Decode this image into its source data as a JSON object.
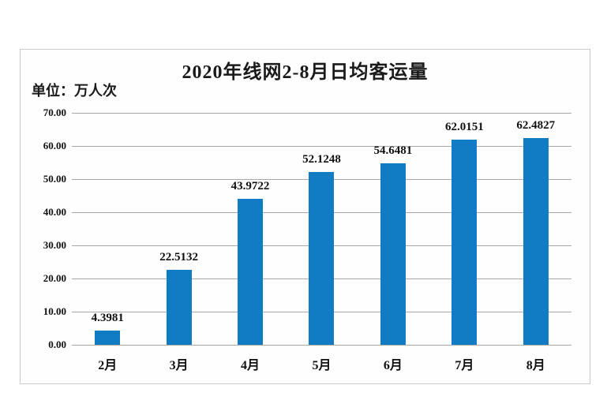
{
  "chart_data": {
    "type": "bar",
    "title": "2020年线网2-8月日均客运量",
    "unit_label": "单位：万人次",
    "categories": [
      "2月",
      "3月",
      "4月",
      "5月",
      "6月",
      "7月",
      "8月"
    ],
    "values": [
      4.3981,
      22.5132,
      43.9722,
      52.1248,
      54.6481,
      62.0151,
      62.4827
    ],
    "value_labels": [
      "4.3981",
      "22.5132",
      "43.9722",
      "52.1248",
      "54.6481",
      "62.0151",
      "62.4827"
    ],
    "xlabel": "",
    "ylabel": "",
    "ylim": [
      0,
      70
    ],
    "ytick_step": 10,
    "ytick_labels": [
      "0.00",
      "10.00",
      "20.00",
      "30.00",
      "40.00",
      "50.00",
      "60.00",
      "70.00"
    ],
    "grid": true,
    "legend_position": "none",
    "bar_color": "#117CC4",
    "gridline_color": "#a8a8a8",
    "frame_border_color": "#c9c9c9",
    "text_color": "#111111"
  }
}
